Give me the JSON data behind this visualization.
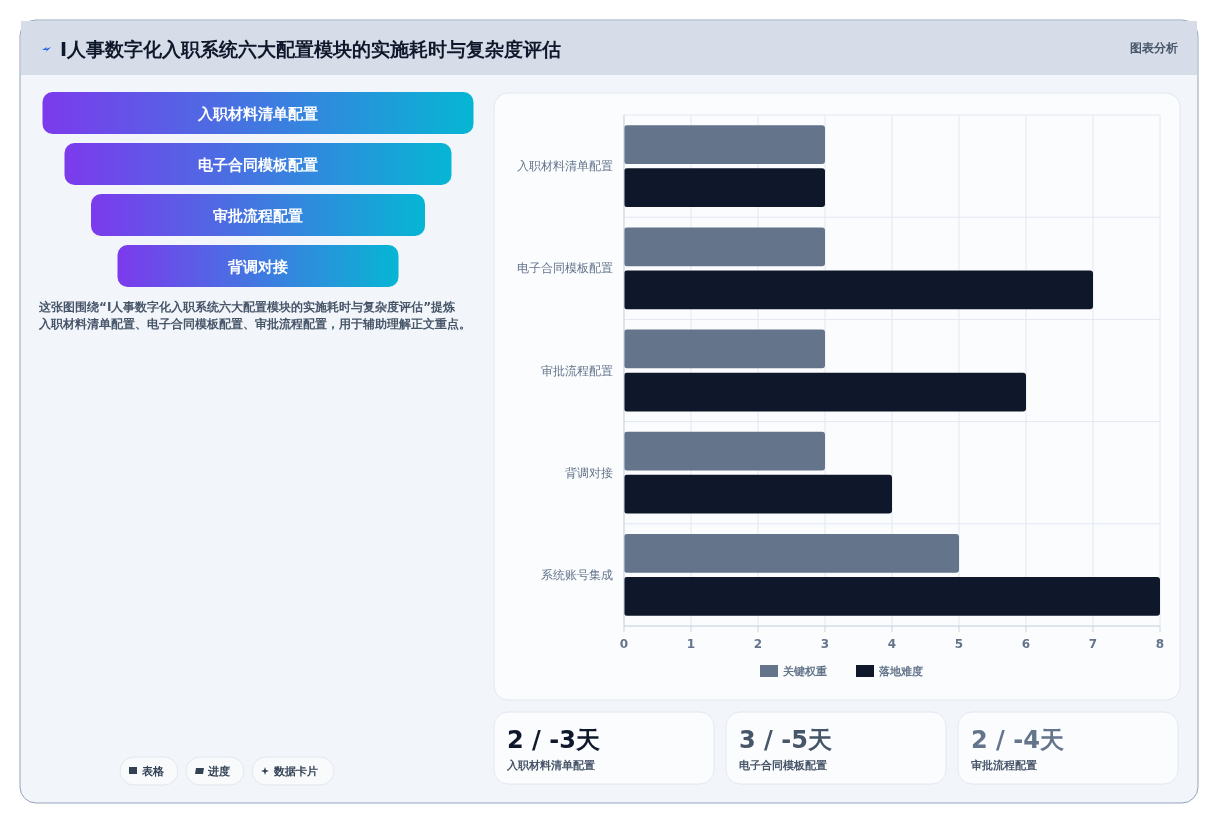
{
  "chart_data": [
    {
      "type": "other",
      "title": "I人事数字化入职系统六大配置模块的实施耗时与复杂度评估",
      "subtitle": "图表分析",
      "categories": [
        "入职材料清单配置",
        "电子合同模板配置",
        "审批流程配置",
        "背调对接"
      ],
      "colors": [
        "#7c3aed",
        "#06b6d4"
      ],
      "annotations": [
        "这张图围绕“I人事数字化入职系统六大配置模块的实施耗时与复杂度评估”提炼入职材料清单配置、电子合同模板配置、审批流程配置，用于辅助理解正文重点。",
        "表格",
        "进度",
        "数据卡片"
      ]
    },
    {
      "type": "bar",
      "orientation": "horizontal",
      "categories": [
        "入职材料清单配置",
        "电子合同模板配置",
        "审批流程配置",
        "背调对接",
        "系统账号集成"
      ],
      "series": [
        {
          "name": "关键权重",
          "color": "#64748b",
          "values": [
            3,
            3,
            3,
            3,
            5
          ]
        },
        {
          "name": "落地难度",
          "color": "#0f172a",
          "values": [
            3,
            7,
            6,
            4,
            8
          ]
        }
      ],
      "xlim": [
        0,
        8
      ],
      "xticks": [
        0,
        1,
        2,
        3,
        4,
        5,
        6,
        7,
        8
      ],
      "grid": true,
      "legend": "bottom"
    },
    {
      "type": "other",
      "categories": [
        "入职材料清单配置",
        "电子合同模板配置",
        "审批流程配置"
      ],
      "annotations": [
        "2 / -3天",
        "3 / -5天",
        "2 / -4天"
      ]
    }
  ]
}
